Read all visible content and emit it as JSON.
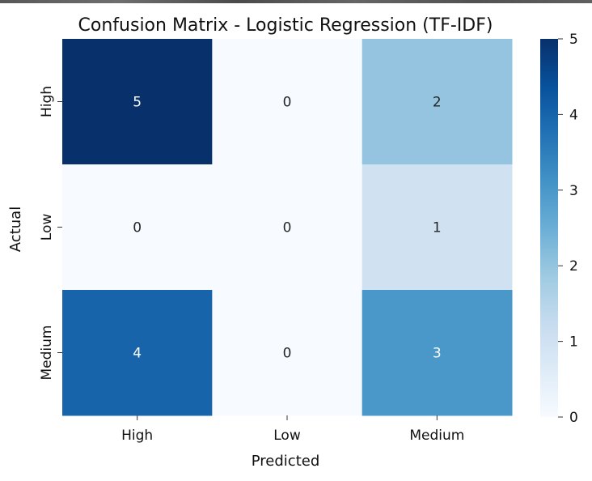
{
  "chart_data": {
    "type": "heatmap",
    "title": "Confusion Matrix - Logistic Regression (TF-IDF)",
    "xlabel": "Predicted",
    "ylabel": "Actual",
    "x_categories": [
      "High",
      "Low",
      "Medium"
    ],
    "y_categories": [
      "High",
      "Low",
      "Medium"
    ],
    "values": [
      [
        5,
        0,
        2
      ],
      [
        0,
        0,
        1
      ],
      [
        4,
        0,
        3
      ]
    ],
    "colorbar": {
      "range": [
        0,
        5
      ],
      "ticks": [
        "0",
        "1",
        "2",
        "3",
        "4",
        "5"
      ],
      "colormap": "Blues"
    },
    "grid": false
  }
}
